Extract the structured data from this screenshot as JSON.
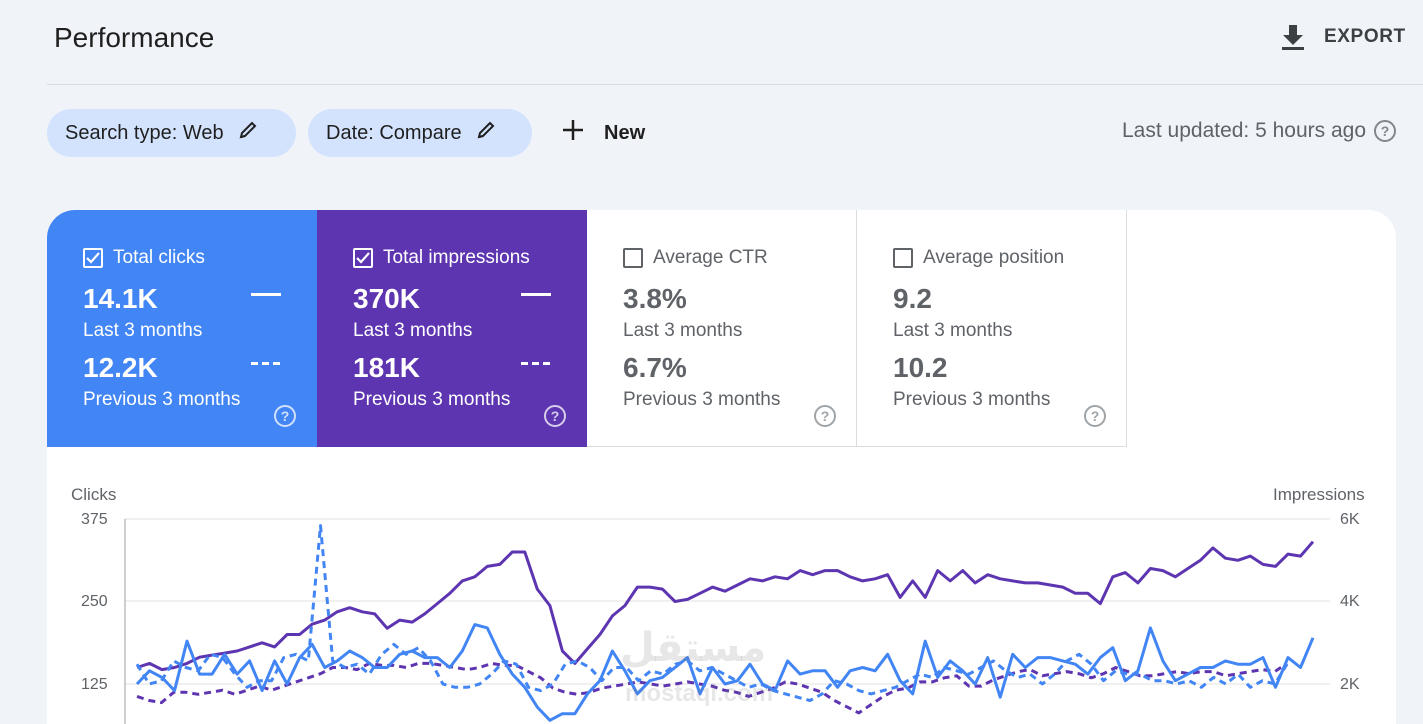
{
  "header": {
    "title": "Performance",
    "export_label": "EXPORT"
  },
  "filters": {
    "search_type": "Search type: Web",
    "date": "Date: Compare",
    "new_label": "New",
    "last_updated": "Last updated: 5 hours ago"
  },
  "metrics": [
    {
      "label": "Total clicks",
      "checked": true,
      "value": "14.1K",
      "period": "Last 3 months",
      "prev_value": "12.2K",
      "prev_period": "Previous 3 months",
      "color": "#4285f4"
    },
    {
      "label": "Total impressions",
      "checked": true,
      "value": "370K",
      "period": "Last 3 months",
      "prev_value": "181K",
      "prev_period": "Previous 3 months",
      "color": "#5e35b1"
    },
    {
      "label": "Average CTR",
      "checked": false,
      "value": "3.8%",
      "period": "Last 3 months",
      "prev_value": "6.7%",
      "prev_period": "Previous 3 months"
    },
    {
      "label": "Average position",
      "checked": false,
      "value": "9.2",
      "period": "Last 3 months",
      "prev_value": "10.2",
      "prev_period": "Previous 3 months"
    }
  ],
  "watermark": {
    "text": "مستقل",
    "sub": "mostaql.com"
  },
  "chart_data": {
    "type": "line",
    "y_left_label": "Clicks",
    "y_right_label": "Impressions",
    "y_left_ticks": [
      "375",
      "250",
      "125"
    ],
    "y_right_ticks": [
      "6K",
      "4K",
      "2K"
    ],
    "ylim_left": [
      0,
      375
    ],
    "ylim_right": [
      0,
      6000
    ],
    "colors": {
      "clicks": "#4285f4",
      "impressions": "#5e35b1"
    },
    "series": [
      {
        "name": "Total impressions",
        "axis": "right",
        "style": "solid",
        "values": [
          2400,
          2500,
          2350,
          2400,
          2500,
          2650,
          2700,
          2750,
          2800,
          2900,
          3000,
          2900,
          3200,
          3200,
          3450,
          3550,
          3750,
          3850,
          3750,
          3700,
          3350,
          3550,
          3500,
          3700,
          3950,
          4200,
          4500,
          4600,
          4850,
          4900,
          5200,
          5200,
          4300,
          3900,
          2800,
          2500,
          2850,
          3200,
          3650,
          3900,
          4350,
          4350,
          4300,
          4000,
          4050,
          4200,
          4350,
          4250,
          4400,
          4550,
          4500,
          4600,
          4550,
          4750,
          4650,
          4750,
          4750,
          4600,
          4500,
          4550,
          4650,
          4100,
          4500,
          4100,
          4750,
          4500,
          4750,
          4450,
          4650,
          4550,
          4500,
          4450,
          4450,
          4400,
          4350,
          4200,
          4200,
          3950,
          4600,
          4700,
          4450,
          4800,
          4750,
          4600,
          4800,
          5000,
          5300,
          5050,
          5000,
          5100,
          4900,
          4850,
          5150,
          5100,
          5450
        ]
      },
      {
        "name": "Total impressions (previous)",
        "axis": "right",
        "style": "dashed",
        "values": [
          1700,
          1600,
          1550,
          1800,
          1800,
          1750,
          1800,
          1850,
          1750,
          1850,
          1950,
          1850,
          1950,
          2050,
          2150,
          2250,
          2400,
          2400,
          2350,
          2500,
          2450,
          2450,
          2400,
          2500,
          2500,
          2450,
          2400,
          2350,
          2400,
          2500,
          2450,
          2450,
          2300,
          2150,
          1900,
          1800,
          1750,
          1800,
          1900,
          1950,
          2000,
          2050,
          2000,
          1950,
          2000,
          2050,
          2000,
          1950,
          1850,
          1800,
          1700,
          1800,
          1900,
          2050,
          2000,
          1900,
          1800,
          1600,
          1450,
          1300,
          1500,
          1700,
          1850,
          1900,
          2050,
          2050,
          2150,
          2200,
          1950,
          1950,
          2100,
          2200,
          2300,
          2350,
          2200,
          2250,
          2300,
          2250,
          2150,
          2250,
          2400,
          2300,
          2200,
          2200,
          2250,
          2300,
          2250,
          2300,
          2300,
          2200,
          2250,
          2300,
          2350,
          2300,
          2500
        ]
      },
      {
        "name": "Total clicks",
        "axis": "left",
        "style": "solid",
        "values": [
          125,
          145,
          135,
          115,
          190,
          140,
          140,
          170,
          140,
          160,
          115,
          160,
          125,
          165,
          185,
          150,
          160,
          175,
          165,
          150,
          150,
          170,
          175,
          165,
          165,
          150,
          175,
          215,
          210,
          170,
          140,
          120,
          90,
          70,
          80,
          80,
          110,
          130,
          175,
          145,
          110,
          130,
          135,
          150,
          165,
          110,
          150,
          125,
          130,
          155,
          125,
          115,
          160,
          140,
          145,
          145,
          120,
          145,
          150,
          145,
          170,
          130,
          110,
          190,
          135,
          160,
          145,
          125,
          165,
          105,
          170,
          150,
          165,
          165,
          160,
          155,
          140,
          165,
          180,
          130,
          145,
          210,
          160,
          130,
          140,
          150,
          150,
          160,
          155,
          155,
          165,
          120,
          165,
          150,
          195
        ]
      },
      {
        "name": "Total clicks (previous)",
        "axis": "left",
        "style": "dashed",
        "values": [
          155,
          125,
          130,
          160,
          150,
          145,
          170,
          165,
          140,
          120,
          130,
          130,
          165,
          170,
          160,
          365,
          160,
          150,
          155,
          140,
          170,
          185,
          170,
          180,
          160,
          125,
          120,
          120,
          125,
          140,
          160,
          155,
          120,
          115,
          125,
          155,
          160,
          150,
          130,
          150,
          150,
          130,
          145,
          140,
          155,
          160,
          145,
          150,
          140,
          130,
          120,
          125,
          115,
          110,
          105,
          100,
          110,
          130,
          125,
          115,
          110,
          115,
          120,
          130,
          140,
          135,
          150,
          145,
          140,
          150,
          160,
          145,
          135,
          140,
          125,
          140,
          160,
          170,
          155,
          130,
          145,
          140,
          140,
          130,
          130,
          125,
          130,
          120,
          135,
          125,
          140,
          120,
          130,
          125,
          155
        ]
      }
    ]
  }
}
